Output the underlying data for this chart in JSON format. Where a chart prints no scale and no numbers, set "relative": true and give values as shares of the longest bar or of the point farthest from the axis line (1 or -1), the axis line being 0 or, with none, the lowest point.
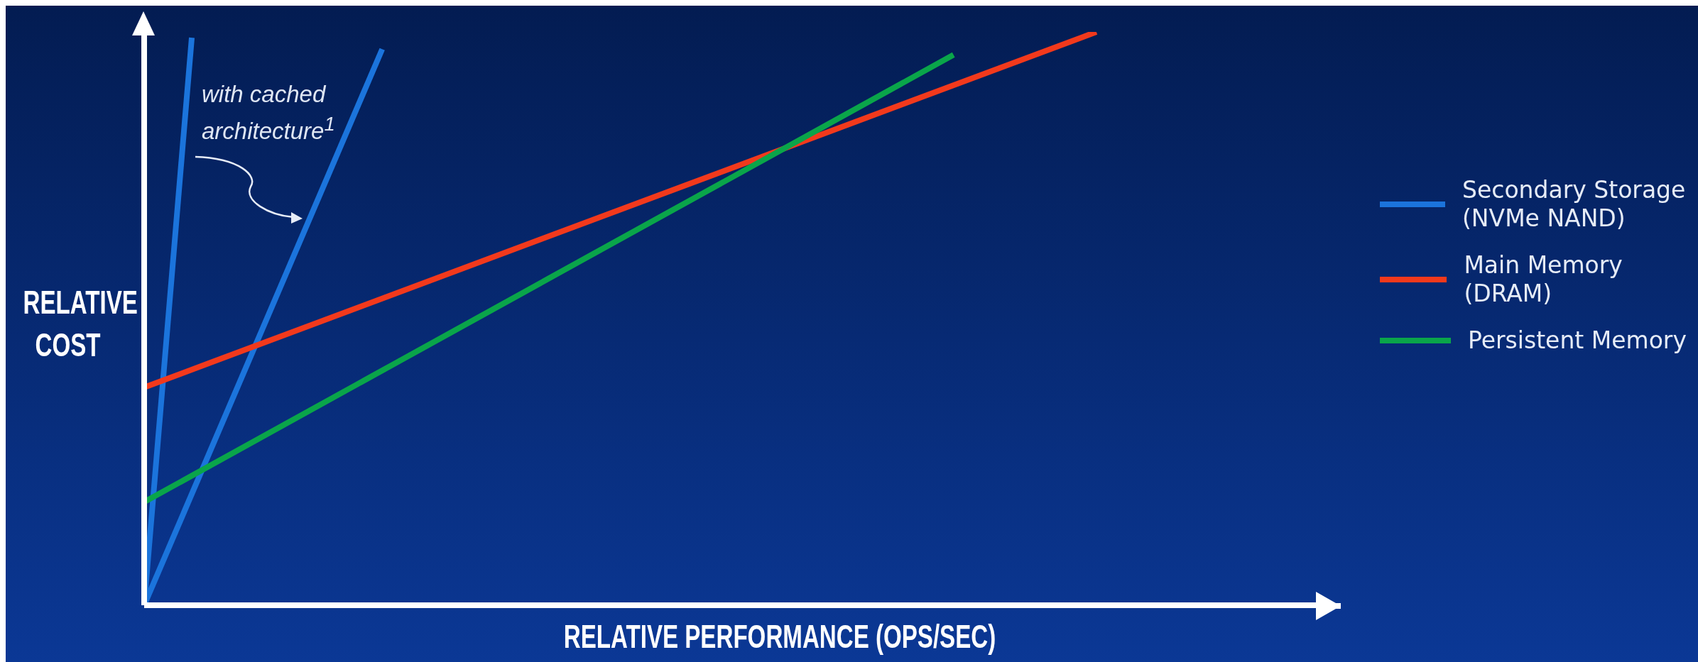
{
  "chart_data": {
    "type": "line",
    "relative": true,
    "xlabel": "RELATIVE PERFORMANCE (OPS/SEC)",
    "ylabel": "RELATIVE COST",
    "legend": "right",
    "categories": [
      null,
      null,
      null,
      null,
      null,
      null,
      null,
      null,
      null,
      null,
      null,
      null,
      null,
      null,
      null,
      null,
      null,
      null,
      null,
      null,
      null,
      null,
      null,
      null,
      null,
      null
    ],
    "annotations": [
      "with cached architecture$^{1}$"
    ],
    "series": [
      {
        "name": "Secondary Storage (NVMe NAND)",
        "color": "#1b74dc",
        "values": [
          0,
          0.99,
          null,
          null,
          null,
          null,
          null,
          null,
          null,
          null,
          null,
          null,
          null,
          null,
          null,
          null,
          null,
          null,
          null,
          null,
          null,
          null,
          null,
          null,
          null,
          null
        ]
      },
      {
        "color": "#1b74dc",
        "values": [
          0,
          null,
          null,
          null,
          null,
          0.97,
          null,
          null,
          null,
          null,
          null,
          null,
          null,
          null,
          null,
          null,
          null,
          null,
          null,
          null,
          null,
          null,
          null,
          null,
          null,
          null
        ]
      },
      {
        "name": "Main Memory (DRAM)",
        "color": "#f2391c",
        "values": [
          0.38,
          null,
          null,
          null,
          null,
          null,
          null,
          null,
          null,
          null,
          null,
          null,
          null,
          null,
          null,
          null,
          null,
          null,
          null,
          null,
          1,
          null,
          null,
          null,
          null,
          null
        ]
      },
      {
        "name": "Persistent Memory",
        "color": "#0aa54a",
        "values": [
          0.18,
          null,
          null,
          null,
          null,
          null,
          null,
          null,
          null,
          null,
          null,
          null,
          null,
          null,
          null,
          null,
          null,
          0.96,
          null,
          null,
          null,
          null,
          null,
          null,
          null,
          null
        ]
      }
    ]
  }
}
